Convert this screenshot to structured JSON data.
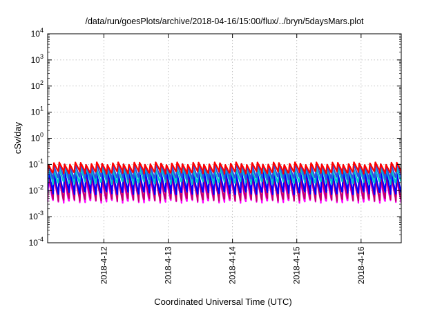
{
  "chart_data": {
    "type": "line",
    "title": "/data/run/goesPlots/archive/2018-04-16/15:00/flux/../bryn/5daysMars.plot",
    "xlabel": "Coordinated Universal Time (UTC)",
    "ylabel": "cSv/day",
    "y_scale": "log",
    "ylim": [
      0.0001,
      10000
    ],
    "xlim": [
      "2018-04-11 03:00",
      "2018-04-16 15:00"
    ],
    "x_ticks": [
      "2018-4-12",
      "2018-4-13",
      "2018-4-14",
      "2018-4-15",
      "2018-4-16"
    ],
    "y_ticks": [
      {
        "base": "10",
        "exp": "-4"
      },
      {
        "base": "10",
        "exp": "-3"
      },
      {
        "base": "10",
        "exp": "-2"
      },
      {
        "base": "10",
        "exp": "-1"
      },
      {
        "base": "10",
        "exp": "0"
      },
      {
        "base": "10",
        "exp": "1"
      },
      {
        "base": "10",
        "exp": "2"
      },
      {
        "base": "10",
        "exp": "3"
      },
      {
        "base": "10",
        "exp": "4"
      }
    ],
    "grid": true,
    "legend": "none",
    "sawtooth_period_hours": 2,
    "series": [
      {
        "color": "#ff00ff",
        "peak": 0.028,
        "trough": 0.0038
      },
      {
        "color": "#c0006a",
        "peak": 0.034,
        "trough": 0.0045
      },
      {
        "color": "#0000ff",
        "peak": 0.05,
        "trough": 0.008
      },
      {
        "color": "#00c8c8",
        "peak": 0.07,
        "trough": 0.02
      },
      {
        "color": "#3050e0",
        "peak": 0.1,
        "trough": 0.03
      },
      {
        "color": "#ff0000",
        "peak": 0.11,
        "trough": 0.05
      }
    ]
  }
}
